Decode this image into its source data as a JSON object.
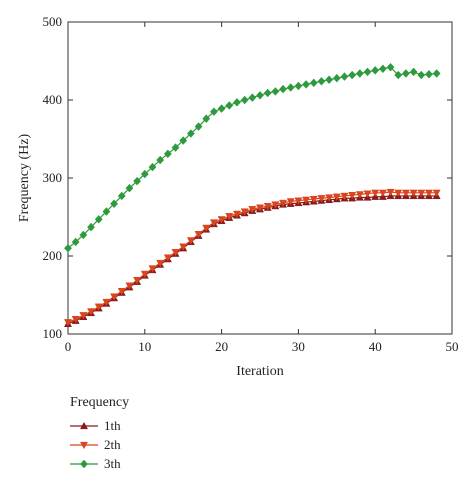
{
  "chart_data": {
    "type": "line",
    "xlabel": "Iteration",
    "ylabel": "Frequency (Hz)",
    "xlim": [
      0,
      50
    ],
    "ylim": [
      100,
      500
    ],
    "xticks": [
      0,
      10,
      20,
      30,
      40,
      50
    ],
    "yticks": [
      100,
      200,
      300,
      400,
      500
    ],
    "grid": false,
    "legend_title": "Frequency",
    "legend_position": "bottom-left",
    "x": [
      0,
      1,
      2,
      3,
      4,
      5,
      6,
      7,
      8,
      9,
      10,
      11,
      12,
      13,
      14,
      15,
      16,
      17,
      18,
      19,
      20,
      21,
      22,
      23,
      24,
      25,
      26,
      27,
      28,
      29,
      30,
      31,
      32,
      33,
      34,
      35,
      36,
      37,
      38,
      39,
      40,
      41,
      42,
      43,
      44,
      45,
      46,
      47,
      48
    ],
    "series": [
      {
        "name": "1th",
        "marker": "triangle-up",
        "color": "#8b1a1a",
        "values": [
          113,
          117,
          122,
          127,
          133,
          139,
          146,
          153,
          160,
          167,
          175,
          182,
          189,
          196,
          203,
          210,
          218,
          226,
          234,
          241,
          245,
          249,
          252,
          255,
          258,
          260,
          262,
          264,
          266,
          267,
          268,
          269,
          270,
          271,
          272,
          273,
          274,
          274,
          275,
          275,
          276,
          276,
          277,
          277,
          277,
          277,
          277,
          277,
          277
        ]
      },
      {
        "name": "2th",
        "marker": "triangle-down",
        "color": "#d9451c",
        "values": [
          115,
          119,
          124,
          129,
          135,
          141,
          148,
          155,
          162,
          169,
          177,
          184,
          191,
          198,
          205,
          212,
          220,
          228,
          236,
          243,
          247,
          251,
          254,
          257,
          260,
          262,
          264,
          266,
          268,
          270,
          271,
          272,
          273,
          274,
          275,
          276,
          277,
          278,
          279,
          280,
          281,
          281,
          282,
          281,
          281,
          281,
          281,
          281,
          281
        ]
      },
      {
        "name": "3th",
        "marker": "diamond",
        "color": "#2e9a3e",
        "values": [
          210,
          218,
          227,
          237,
          247,
          257,
          267,
          277,
          287,
          296,
          305,
          314,
          323,
          331,
          339,
          348,
          357,
          366,
          376,
          385,
          389,
          393,
          397,
          400,
          403,
          406,
          409,
          411,
          414,
          416,
          418,
          420,
          422,
          424,
          426,
          428,
          430,
          432,
          434,
          436,
          438,
          440,
          442,
          432,
          434,
          436,
          432,
          433,
          434
        ]
      }
    ]
  }
}
